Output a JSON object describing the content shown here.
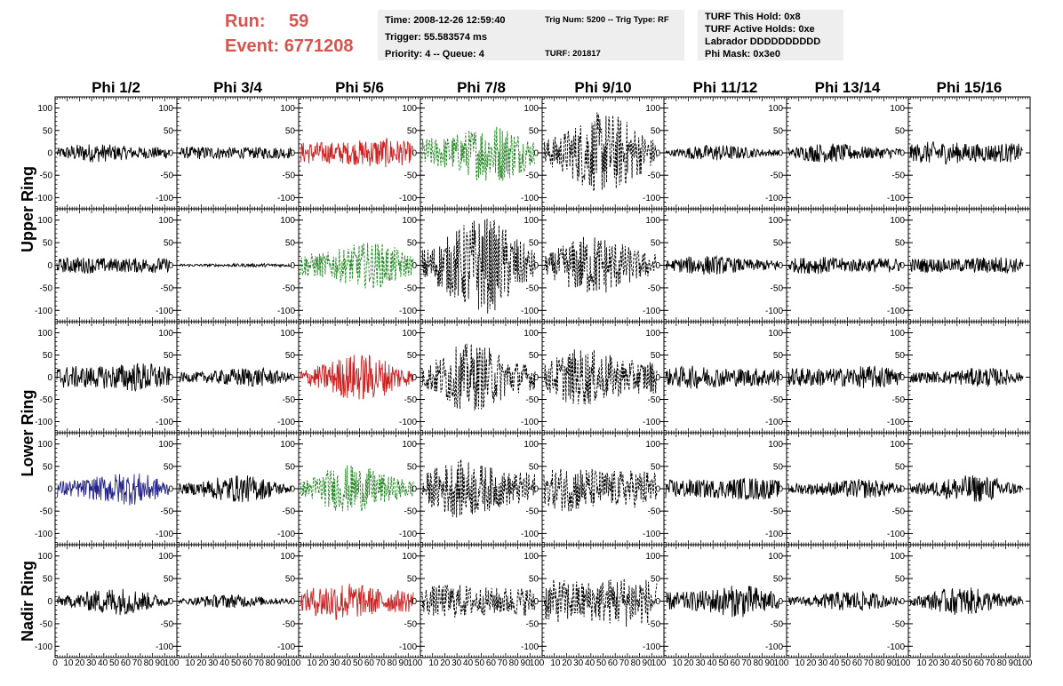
{
  "header": {
    "run_label": "Run:",
    "run_value": "59",
    "event_label": "Event:",
    "event_value": "6771208"
  },
  "info_boxes": [
    {
      "lines": [
        "Time: 2008-12-26 12:59:40",
        "Trigger: 55.583574 ms",
        "Priority: 4 -- Queue: 4"
      ]
    },
    {
      "lines": [
        "Trig Num: 5200 -- Trig Type: RF",
        "",
        "TURF: 201817"
      ]
    },
    {
      "lines": [
        "TURF This Hold: 0x8",
        "TURF Active Holds: 0xe",
        "Labrador DDDDDDDDDD",
        "Phi Mask: 0x3e0"
      ]
    }
  ],
  "chart_data": {
    "type": "line",
    "columns": [
      "Phi 1/2",
      "Phi 3/4",
      "Phi 5/6",
      "Phi 7/8",
      "Phi 9/10",
      "Phi 11/12",
      "Phi 13/14",
      "Phi 15/16"
    ],
    "row_groups": [
      "Upper Ring",
      "Lower Ring",
      "Nadir Ring"
    ],
    "rows": 5,
    "ylim": [
      -125,
      125
    ],
    "yticks": [
      -100,
      -50,
      0,
      50,
      100
    ],
    "xlim": [
      0,
      100
    ],
    "xtick_labels": [
      "0",
      "10",
      "20",
      "30",
      "40",
      "50",
      "60",
      "70",
      "80",
      "90",
      "100"
    ],
    "colors": {
      "default": "#000000",
      "red": "#cc2222",
      "green": "#228822",
      "blue": "#222288"
    },
    "panels": [
      [
        {
          "amp": 15,
          "color": "default",
          "dash": false
        },
        {
          "amp": 12,
          "color": "default",
          "dash": false
        },
        {
          "amp": 25,
          "color": "red",
          "dash": false
        },
        {
          "amp": 45,
          "color": "green",
          "dash": true
        },
        {
          "amp": 60,
          "color": "default",
          "dash": true
        },
        {
          "amp": 12,
          "color": "default",
          "dash": false
        },
        {
          "amp": 15,
          "color": "default",
          "dash": false
        },
        {
          "amp": 20,
          "color": "default",
          "dash": false
        }
      ],
      [
        {
          "amp": 15,
          "color": "default",
          "dash": false
        },
        {
          "amp": 3,
          "color": "default",
          "dash": false
        },
        {
          "amp": 35,
          "color": "green",
          "dash": true
        },
        {
          "amp": 70,
          "color": "default",
          "dash": true
        },
        {
          "amp": 45,
          "color": "default",
          "dash": true
        },
        {
          "amp": 15,
          "color": "default",
          "dash": false
        },
        {
          "amp": 15,
          "color": "default",
          "dash": false
        },
        {
          "amp": 15,
          "color": "default",
          "dash": false
        }
      ],
      [
        {
          "amp": 25,
          "color": "default",
          "dash": false
        },
        {
          "amp": 15,
          "color": "default",
          "dash": false
        },
        {
          "amp": 35,
          "color": "red",
          "dash": false
        },
        {
          "amp": 50,
          "color": "default",
          "dash": true
        },
        {
          "amp": 45,
          "color": "default",
          "dash": true
        },
        {
          "amp": 20,
          "color": "default",
          "dash": false
        },
        {
          "amp": 20,
          "color": "default",
          "dash": false
        },
        {
          "amp": 15,
          "color": "default",
          "dash": false
        }
      ],
      [
        {
          "amp": 25,
          "color": "blue",
          "dash": false
        },
        {
          "amp": 20,
          "color": "default",
          "dash": false
        },
        {
          "amp": 35,
          "color": "green",
          "dash": true
        },
        {
          "amp": 45,
          "color": "default",
          "dash": true
        },
        {
          "amp": 40,
          "color": "default",
          "dash": true
        },
        {
          "amp": 20,
          "color": "default",
          "dash": false
        },
        {
          "amp": 15,
          "color": "default",
          "dash": false
        },
        {
          "amp": 20,
          "color": "default",
          "dash": false
        }
      ],
      [
        {
          "amp": 20,
          "color": "default",
          "dash": false
        },
        {
          "amp": 10,
          "color": "default",
          "dash": false
        },
        {
          "amp": 30,
          "color": "red",
          "dash": false
        },
        {
          "amp": 30,
          "color": "default",
          "dash": true
        },
        {
          "amp": 45,
          "color": "default",
          "dash": true
        },
        {
          "amp": 25,
          "color": "default",
          "dash": false
        },
        {
          "amp": 15,
          "color": "default",
          "dash": false
        },
        {
          "amp": 20,
          "color": "default",
          "dash": false
        }
      ]
    ]
  }
}
